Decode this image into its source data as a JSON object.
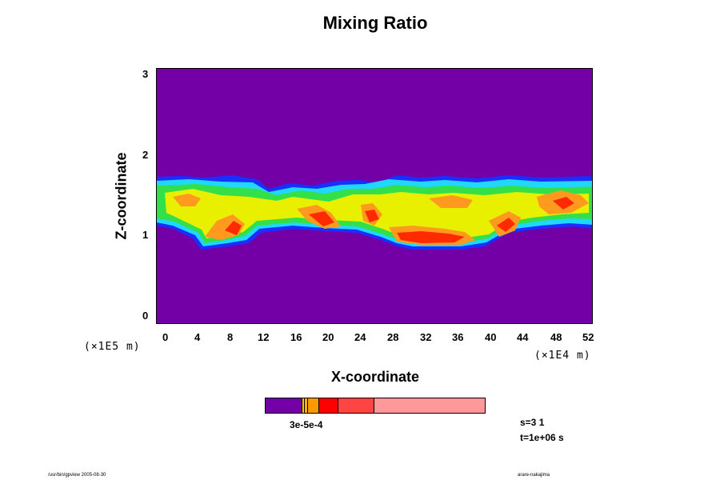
{
  "chart_data": {
    "type": "heatmap",
    "title": "Mixing Ratio",
    "xlabel": "X-coordinate",
    "ylabel": "Z-coordinate",
    "x_unit": "(×1E4 m)",
    "y_unit": "(×1E5 m)",
    "xlim": [
      -2,
      52
    ],
    "ylim": [
      -0.1,
      3.05
    ],
    "xticks": [
      "0",
      "4",
      "8",
      "12",
      "16",
      "20",
      "24",
      "28",
      "32",
      "36",
      "40",
      "44",
      "48",
      "52"
    ],
    "yticks": [
      "0",
      "1",
      "2",
      "3"
    ],
    "colorbar": {
      "label": "3e-5e-4",
      "colors": [
        "#7300a6",
        "#ffcc00",
        "#ff9900",
        "#ff0000",
        "#ff4444",
        "#ff9999"
      ]
    },
    "layer": {
      "z_bottom": 1.1,
      "z_top": 1.75,
      "lowest_lobe_z": 0.85
    }
  },
  "info": {
    "s": "s=3 1",
    "t": "t=1e+06 s"
  },
  "footer": {
    "left": "/usr/bin/gpview 2005-08-30",
    "right": "arare-nakajima"
  },
  "colors": {
    "background": "#7300a6",
    "blue": "#1a2fff",
    "cyan": "#20d8ff",
    "green": "#33e04a",
    "yellow": "#e8f000",
    "orange": "#ff9a1f",
    "red": "#ff2a00"
  }
}
